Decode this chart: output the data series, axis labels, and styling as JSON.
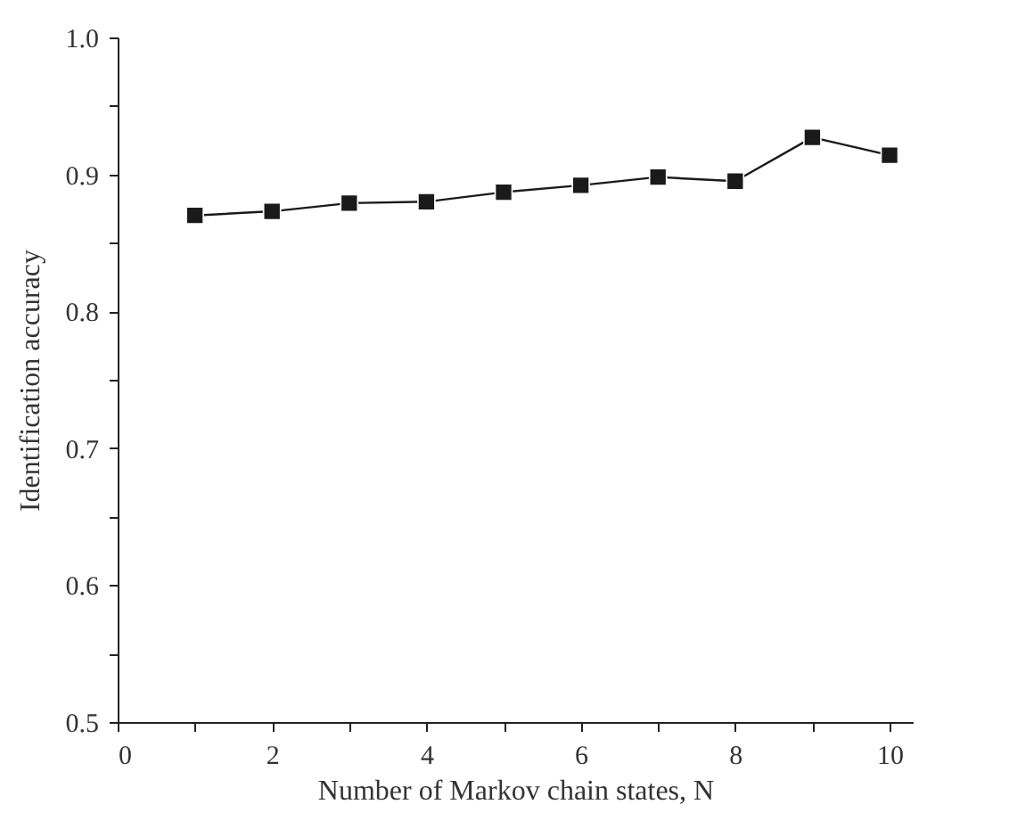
{
  "chart_data": {
    "type": "line",
    "xlabel": "Number of Markov chain states, N",
    "ylabel": "Identification accuracy",
    "x": [
      1,
      2,
      3,
      4,
      5,
      6,
      7,
      8,
      9,
      10
    ],
    "series": [
      {
        "color": "#1a1a1a",
        "values": [
          0.87,
          0.873,
          0.879,
          0.88,
          0.887,
          0.892,
          0.898,
          0.895,
          0.927,
          0.914
        ]
      }
    ],
    "xlim": [
      0,
      10.3
    ],
    "xticks": [
      0,
      {
        "value": 1,
        "label": null
      },
      2,
      {
        "value": 3,
        "label": null
      },
      4,
      {
        "value": 5,
        "label": null
      },
      6,
      {
        "value": 7,
        "label": null
      },
      8,
      {
        "value": 9,
        "label": null
      },
      10
    ],
    "ylim": [
      0.5,
      1.0
    ],
    "yticks": [
      {
        "value": 0.5,
        "label": "0.5"
      },
      {
        "value": 0.55,
        "label": null
      },
      {
        "value": 0.6,
        "label": "0.6"
      },
      {
        "value": 0.65,
        "label": null
      },
      {
        "value": 0.7,
        "label": "0.7"
      },
      {
        "value": 0.75,
        "label": null
      },
      {
        "value": 0.8,
        "label": "0.8"
      },
      {
        "value": 0.85,
        "label": null
      },
      {
        "value": 0.9,
        "label": "0.9"
      },
      {
        "value": 0.95,
        "label": null
      },
      {
        "value": 1.0,
        "label": "1.0"
      }
    ],
    "grid": false,
    "marker": "square",
    "line_style": "solid"
  }
}
